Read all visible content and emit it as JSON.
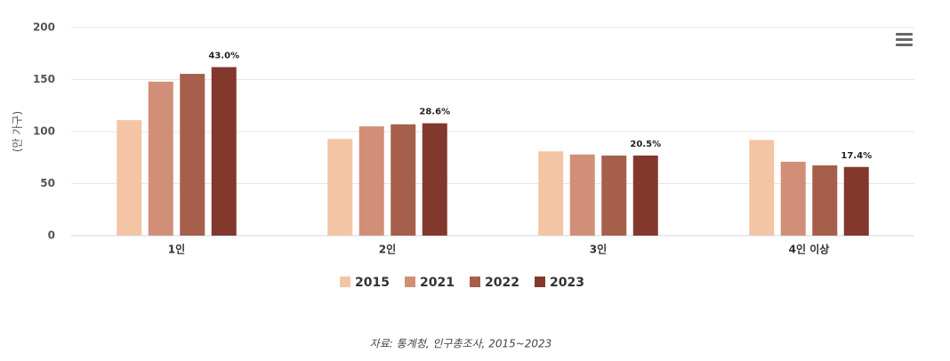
{
  "chart_data": {
    "type": "bar",
    "y_axis_label": "(만 가구)",
    "categories": [
      "1인",
      "2인",
      "3인",
      "4인 이상"
    ],
    "series": [
      {
        "name": "2015",
        "color": "#f3c5a5",
        "values": [
          111,
          93,
          81,
          92
        ]
      },
      {
        "name": "2021",
        "color": "#d18f77",
        "values": [
          148,
          105,
          78,
          71
        ]
      },
      {
        "name": "2022",
        "color": "#a65f4b",
        "values": [
          155.5,
          107,
          77,
          67.5
        ]
      },
      {
        "name": "2023",
        "color": "#83382d",
        "values": [
          162,
          108,
          77,
          66
        ]
      }
    ],
    "annotations": [
      "43.0%",
      "28.6%",
      "20.5%",
      "17.4%"
    ],
    "ylim": [
      0,
      200
    ],
    "yticks": [
      0,
      50,
      100,
      150,
      200
    ],
    "grid": true,
    "source": "자료: 통계청, 인구총조사, 2015~2023"
  }
}
